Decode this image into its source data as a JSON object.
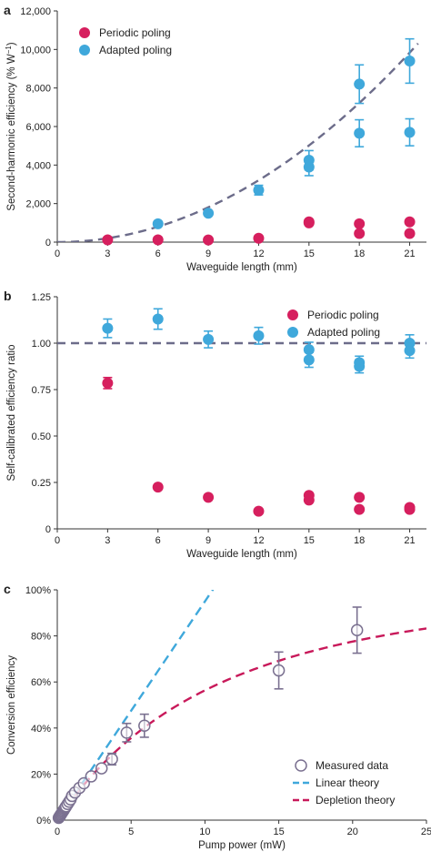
{
  "colors": {
    "periodic": "#D61F5E",
    "adapted": "#3FA8DB",
    "fit": "#6C6C8A",
    "linear": "#3FA8DB",
    "depletion": "#C8195A",
    "measured": "#7A7090",
    "axis": "#333333"
  },
  "chart_data": [
    {
      "panel": "a",
      "type": "scatter",
      "xlabel": "Waveguide length (mm)",
      "ylabel": "Second-harmonic efficiency (% W",
      "ylabel_sup": "−1",
      "ylabel_end": ")",
      "xlim": [
        0,
        22
      ],
      "ylim": [
        0,
        12000
      ],
      "xticks": [
        0,
        3,
        6,
        9,
        12,
        15,
        18,
        21
      ],
      "yticks": [
        0,
        2000,
        4000,
        6000,
        8000,
        10000,
        12000
      ],
      "ytick_labels": [
        "0",
        "2,000",
        "4,000",
        "6,000",
        "8,000",
        "10,000",
        "12,000"
      ],
      "legend_position": "top-left",
      "series": [
        {
          "name": "Periodic poling",
          "color_key": "periodic",
          "x": [
            3,
            6,
            9,
            12,
            15,
            15,
            18,
            18,
            21,
            21
          ],
          "y": [
            120,
            120,
            110,
            200,
            1000,
            1050,
            950,
            450,
            1050,
            450
          ],
          "err": [
            0,
            0,
            0,
            0,
            0,
            0,
            0,
            0,
            0,
            0
          ]
        },
        {
          "name": "Adapted poling",
          "color_key": "adapted",
          "x": [
            6,
            9,
            12,
            15,
            15,
            18,
            18,
            21,
            21
          ],
          "y": [
            950,
            1500,
            2700,
            4250,
            3900,
            8200,
            5650,
            9400,
            5700
          ],
          "err": [
            100,
            100,
            250,
            500,
            450,
            1000,
            700,
            1150,
            700
          ]
        }
      ],
      "fit_curve": {
        "type": "quadratic",
        "coefficient": 22.3,
        "x_range": [
          0,
          21.5
        ]
      }
    },
    {
      "panel": "b",
      "type": "scatter",
      "xlabel": "Waveguide length (mm)",
      "ylabel": "Self-calibrated efficiency ratio",
      "xlim": [
        0,
        22
      ],
      "ylim": [
        0,
        1.25
      ],
      "xticks": [
        0,
        3,
        6,
        9,
        12,
        15,
        18,
        21
      ],
      "yticks": [
        0,
        0.25,
        0.5,
        0.75,
        1.0,
        1.25
      ],
      "ytick_labels": [
        "0",
        "0.25",
        "0.50",
        "0.75",
        "1.00",
        "1.25"
      ],
      "legend_position": "top-right",
      "series": [
        {
          "name": "Periodic poling",
          "color_key": "periodic",
          "x": [
            3,
            6,
            9,
            12,
            15,
            15,
            18,
            18,
            21,
            21
          ],
          "y": [
            0.785,
            0.225,
            0.17,
            0.095,
            0.18,
            0.155,
            0.17,
            0.105,
            0.115,
            0.105
          ],
          "err": [
            0.03,
            0,
            0,
            0,
            0,
            0,
            0,
            0,
            0,
            0
          ]
        },
        {
          "name": "Adapted poling",
          "color_key": "adapted",
          "x": [
            3,
            6,
            9,
            12,
            15,
            15,
            18,
            18,
            21,
            21
          ],
          "y": [
            1.08,
            1.13,
            1.02,
            1.04,
            0.965,
            0.91,
            0.895,
            0.875,
            1.0,
            0.96
          ],
          "err": [
            0.05,
            0.055,
            0.045,
            0.045,
            0.04,
            0.04,
            0.035,
            0.035,
            0.045,
            0.04
          ]
        }
      ],
      "reference_line": {
        "y": 1.0
      }
    },
    {
      "panel": "c",
      "type": "scatter",
      "xlabel": "Pump power (mW)",
      "ylabel": "Conversion efficiency",
      "xlim": [
        0,
        25
      ],
      "ylim": [
        0,
        100
      ],
      "xticks": [
        0,
        5,
        10,
        15,
        20,
        25
      ],
      "yticks": [
        0,
        20,
        40,
        60,
        80,
        100
      ],
      "ytick_labels": [
        "0%",
        "20%",
        "40%",
        "60%",
        "80%",
        "100%"
      ],
      "legend_position": "bottom-right",
      "series": [
        {
          "name": "Measured data",
          "color_key": "measured",
          "x": [
            0.1,
            0.15,
            0.2,
            0.25,
            0.3,
            0.35,
            0.4,
            0.45,
            0.5,
            0.55,
            0.6,
            0.7,
            0.8,
            0.9,
            1.0,
            1.2,
            1.5,
            1.8,
            2.3,
            3.0,
            3.7,
            4.7,
            5.9,
            15.0,
            20.3
          ],
          "y": [
            1,
            1.5,
            2,
            2.5,
            3,
            3.5,
            4,
            4.5,
            5,
            5.5,
            6,
            7,
            8,
            9,
            10.5,
            12,
            14,
            16,
            19,
            22.5,
            26.5,
            38,
            41,
            65,
            82.5
          ],
          "err": [
            0,
            0,
            0,
            0,
            0,
            0,
            0,
            0,
            0,
            0,
            0,
            0,
            0,
            0,
            0,
            0,
            0,
            0,
            0,
            0,
            2.5,
            4,
            5,
            8,
            10
          ]
        }
      ],
      "lines": [
        {
          "name": "Linear theory",
          "color_key": "linear",
          "model": "linear",
          "slope": 9.5
        },
        {
          "name": "Depletion theory",
          "color_key": "depletion",
          "model": "depletion",
          "slope": 9.5
        }
      ]
    }
  ]
}
